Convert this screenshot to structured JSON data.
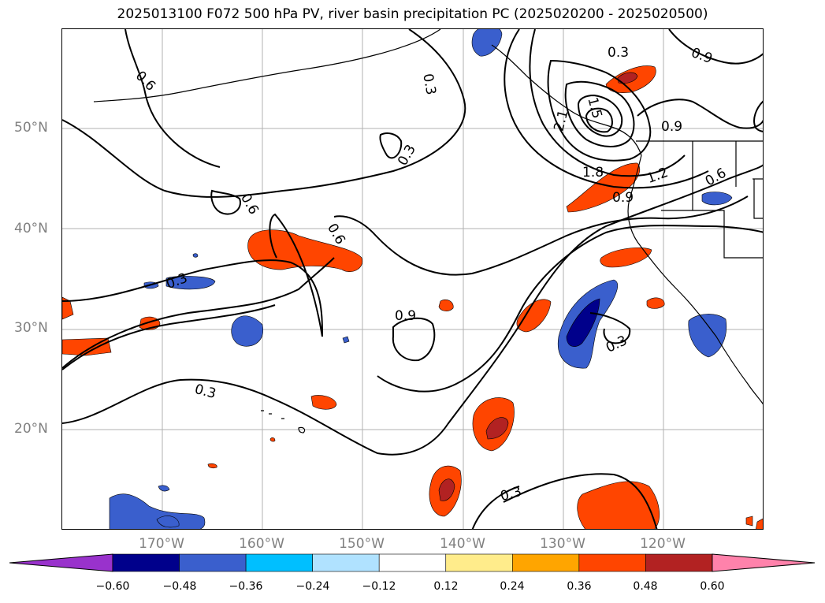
{
  "title": "2025013100 F072 500 hPa PV, river basin precipitation PC (2025020200 - 2025020500)",
  "latitude_labels": [
    "50°N",
    "40°N",
    "30°N",
    "20°N"
  ],
  "longitude_labels": [
    "170°W",
    "160°W",
    "150°W",
    "140°W",
    "130°W",
    "120°W"
  ],
  "contour_labels": [
    "0.6",
    "0.3",
    "0.3",
    "0.6",
    "0.6",
    "0.3",
    "0.9",
    "0.3",
    "0.3",
    "0.3",
    "1.5",
    "2.1",
    "1.8",
    "1.2",
    "0.9",
    "0.9",
    "0.9",
    "0.6",
    "0.3"
  ],
  "colorbar": {
    "tick_labels": [
      "−0.60",
      "−0.48",
      "−0.36",
      "−0.24",
      "−0.12",
      "0.12",
      "0.24",
      "0.36",
      "0.48",
      "0.60"
    ],
    "colors": [
      "#9932cc",
      "#00008b",
      "#3a5fcd",
      "#00bfff",
      "#b0e2ff",
      "#ffffff",
      "#ffec8b",
      "#ffa500",
      "#ff4500",
      "#b22222",
      "#ff82ab"
    ]
  }
}
